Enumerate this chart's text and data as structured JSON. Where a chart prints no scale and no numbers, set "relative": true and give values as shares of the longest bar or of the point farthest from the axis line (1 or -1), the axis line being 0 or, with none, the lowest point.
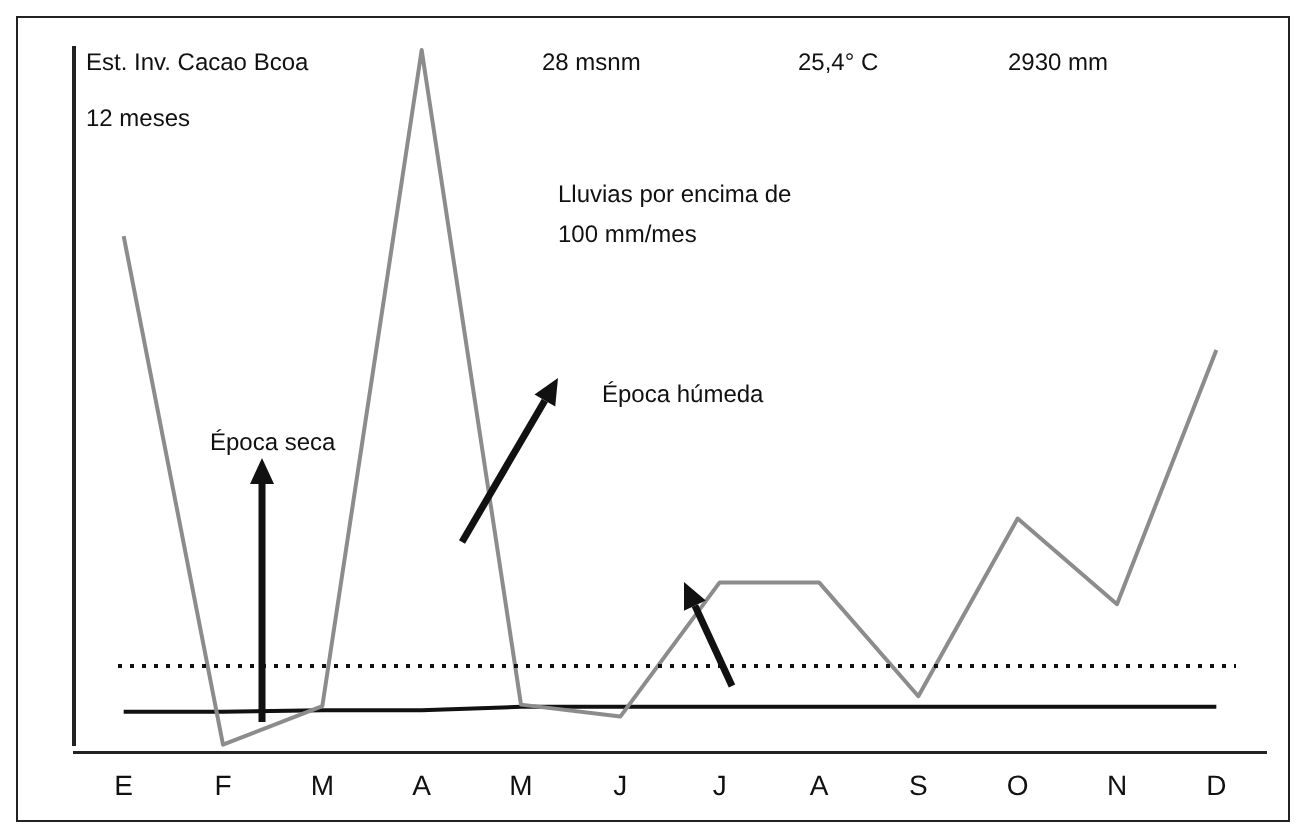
{
  "chart_data": {
    "type": "line",
    "relative": true,
    "categories": [
      "E",
      "F",
      "M",
      "A",
      "M",
      "J",
      "J",
      "A",
      "S",
      "O",
      "N",
      "D"
    ],
    "series": [
      {
        "color": "#8c8c8c",
        "values": [
          0.735,
          0.011,
          0.066,
          1,
          0.068,
          0.051,
          0.242,
          0.242,
          0.08,
          0.333,
          0.211,
          0.573
        ]
      },
      {
        "color": "#111111",
        "values": [
          0.058,
          0.058,
          0.06,
          0.06,
          0.065,
          0.065,
          0.065,
          0.065,
          0.065,
          0.065,
          0.065,
          0.065
        ]
      }
    ],
    "ref_lines": [
      {
        "axis": "y",
        "value": 0.123,
        "color": "#111111",
        "line_style": "dotted"
      }
    ],
    "annotations": [
      "Est. Inv. Cacao Bcoa",
      "12 meses",
      "28 msnm",
      "25,4° C",
      "2930 mm",
      "Lluvias por encima de 100 mm/mes",
      "Época seca",
      "Época húmeda"
    ],
    "grid": false,
    "legend": false,
    "marker": "none",
    "line_style": "solid"
  }
}
